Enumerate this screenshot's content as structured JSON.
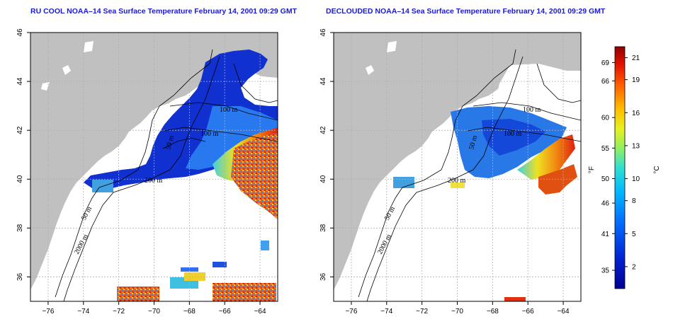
{
  "left_panel": {
    "title": "RU COOL NOAA–14 Sea Surface Temperature February 14, 2001 09:29 GMT",
    "contour_labels": [
      "100 m",
      "100 m",
      "50 m",
      "200 m",
      "50 m",
      "2000 m"
    ]
  },
  "right_panel": {
    "title": "DECLOUDED NOAA–14 Sea Surface Temperature February 14, 2001 09:29 GMT",
    "contour_labels": [
      "100 m",
      "100 m",
      "50 m",
      "200 m",
      "50 m",
      "2000 m"
    ]
  },
  "axes": {
    "lon_ticks": [
      "−76",
      "−74",
      "−72",
      "−70",
      "−68",
      "−66",
      "−64"
    ],
    "lat_ticks": [
      "36",
      "38",
      "40",
      "42",
      "44",
      "46"
    ],
    "lon_values": [
      -76,
      -74,
      -72,
      -70,
      -68,
      -66,
      -64
    ],
    "lat_values": [
      36,
      38,
      40,
      42,
      44,
      46
    ],
    "lon_range": [
      -77,
      -63
    ],
    "lat_range": [
      35,
      46
    ]
  },
  "colorbar": {
    "fahrenheit_label": "°F",
    "celsius_label": "°C",
    "fahrenheit_ticks": [
      "69",
      "66",
      "60",
      "55",
      "50",
      "46",
      "41",
      "35"
    ],
    "celsius_ticks": [
      "21",
      "19",
      "16",
      "13",
      "10",
      "8",
      "5",
      "2"
    ],
    "fahrenheit_values": [
      69,
      66,
      60,
      55,
      50,
      46,
      41,
      35
    ],
    "celsius_values": [
      21,
      19,
      16,
      13,
      10,
      8,
      5,
      2
    ],
    "range_c": [
      0,
      22
    ],
    "colors": [
      "#0000a0",
      "#0030e0",
      "#0080ff",
      "#00c0ff",
      "#40e0c0",
      "#c0f040",
      "#ffe000",
      "#ff8000",
      "#ff2000",
      "#a00000"
    ]
  },
  "colors": {
    "land": "#c0c0c0",
    "cold_water": "#1030d0",
    "mid_water": "#2080f0",
    "warm_water": "#f0c020",
    "hot_water": "#e03010",
    "grid": "#b0b0b0"
  }
}
